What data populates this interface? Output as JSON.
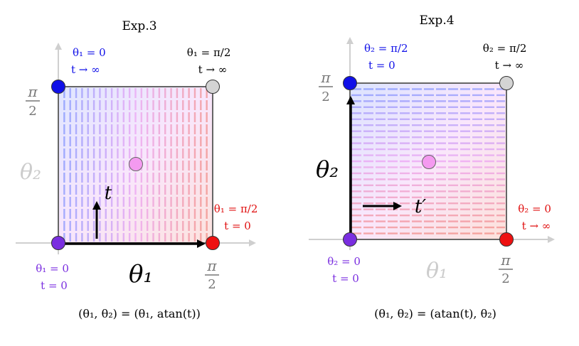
{
  "panels": [
    {
      "title": "Exp.3",
      "axis_y_label": "θ₂",
      "axis_x_label": "θ₁",
      "param_label": "t",
      "y_tick": "π/2",
      "x_tick": "π/2",
      "corners": {
        "top_left": [
          "θ₁ = 0",
          "t → ∞"
        ],
        "top_right": [
          "θ₁ = π/2",
          "t → ∞"
        ],
        "bottom_right": [
          "θ₁ = π/2",
          "t = 0"
        ],
        "bottom_left": [
          "θ₁ = 0",
          "t = 0"
        ]
      },
      "equation": "(θ₁, θ₂) = (θ₁, atan(t))"
    },
    {
      "title": "Exp.4",
      "axis_y_label": "θ₂",
      "axis_x_label": "θ₁",
      "param_label": "t′",
      "y_tick": "π/2",
      "x_tick": "π/2",
      "corners": {
        "top_left": [
          "θ₂ = π/2",
          "t = 0"
        ],
        "top_right": [
          "θ₂ = π/2",
          "t → ∞"
        ],
        "bottom_right": [
          "θ₂ = 0",
          "t → ∞"
        ],
        "bottom_left": [
          "θ₂ = 0",
          "t = 0"
        ]
      },
      "equation": "(θ₁, θ₂) = (atan(t), θ₂)"
    }
  ],
  "colors": {
    "blue": "#1010e8",
    "red": "#ee1111",
    "purple": "#7a2ee0",
    "gray": "#d4d4d4",
    "pink": "#f49af0",
    "frame": "#666666",
    "axis": "#cccccc",
    "faded_label": "#cccccc"
  }
}
